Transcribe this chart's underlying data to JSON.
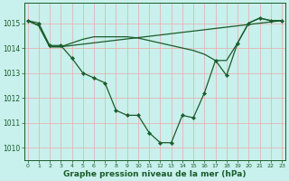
{
  "title": "Graphe pression niveau de la mer (hPa)",
  "bg_color": "#c8f0ec",
  "grid_color": "#e8aaaa",
  "line_color": "#1a5c2a",
  "ylim": [
    1009.5,
    1015.8
  ],
  "xlim": [
    -0.3,
    23.3
  ],
  "xticks": [
    0,
    1,
    2,
    3,
    4,
    5,
    6,
    7,
    8,
    9,
    10,
    11,
    12,
    13,
    14,
    15,
    16,
    17,
    18,
    19,
    20,
    21,
    22,
    23
  ],
  "yticks": [
    1010,
    1011,
    1012,
    1013,
    1014,
    1015
  ],
  "series1": {
    "x": [
      0,
      1,
      2,
      3,
      4,
      5,
      6,
      7,
      8,
      9,
      10,
      11,
      12,
      13,
      14,
      15,
      16,
      17,
      18,
      19,
      20,
      21,
      22,
      23
    ],
    "y": [
      1015.1,
      1015.0,
      1014.1,
      1014.1,
      1013.6,
      1013.0,
      1012.8,
      1012.6,
      1011.5,
      1011.3,
      1011.3,
      1010.6,
      1010.2,
      1010.2,
      1011.3,
      1011.2,
      1012.2,
      1013.5,
      1012.9,
      1014.2,
      1015.0,
      1015.2,
      1015.1,
      1015.1
    ]
  },
  "series2": {
    "x": [
      0,
      1,
      2,
      3,
      4,
      5,
      6,
      7,
      8,
      9,
      10,
      11,
      12,
      13,
      14,
      15,
      16,
      17,
      18,
      19,
      20,
      21,
      22,
      23
    ],
    "y": [
      1015.1,
      1014.9,
      1014.05,
      1014.05,
      1014.2,
      1014.35,
      1014.45,
      1014.45,
      1014.45,
      1014.45,
      1014.4,
      1014.3,
      1014.2,
      1014.1,
      1014.0,
      1013.9,
      1013.75,
      1013.5,
      1013.5,
      1014.2,
      1015.0,
      1015.2,
      1015.1,
      1015.1
    ]
  },
  "series3": {
    "x": [
      0,
      1,
      2,
      3,
      23
    ],
    "y": [
      1015.1,
      1014.9,
      1014.05,
      1014.05,
      1015.1
    ]
  },
  "title_fontsize": 6.5,
  "tick_fontsize": 5.5
}
